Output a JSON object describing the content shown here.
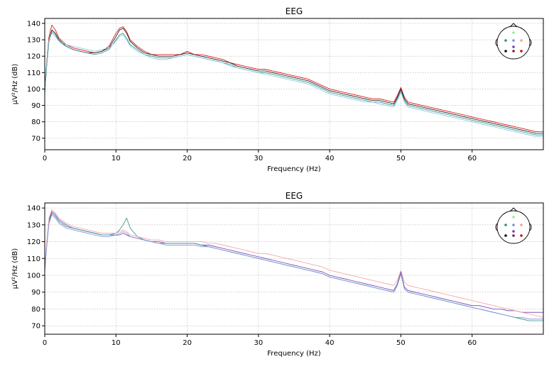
{
  "chart_data": [
    {
      "type": "line",
      "title": "EEG",
      "xlabel": "Frequency (Hz)",
      "ylabel": "µV²/Hz (dB)",
      "xlim": [
        0,
        70
      ],
      "ylim": [
        63,
        143
      ],
      "xticks": [
        0,
        10,
        20,
        30,
        40,
        50,
        60
      ],
      "yticks": [
        70,
        80,
        90,
        100,
        110,
        120,
        130,
        140
      ],
      "grid": true,
      "legend": "sensor-location-inset-top-right",
      "sensor_dots": [
        "#90ee90",
        "#2e8b8b",
        "#7b8fd6",
        "#f4a0a0",
        "#6a3fb5",
        "#111111",
        "#8b1a3a",
        "#e00000"
      ],
      "x": [
        0,
        0.3,
        0.6,
        1,
        1.5,
        2,
        3,
        4,
        5,
        6,
        7,
        8,
        9,
        10,
        10.5,
        11,
        11.5,
        12,
        13,
        14,
        15,
        16,
        17,
        18,
        19,
        20,
        21,
        22,
        23,
        24,
        25,
        26,
        27,
        28,
        29,
        30,
        31,
        32,
        33,
        34,
        35,
        36,
        37,
        38,
        39,
        40,
        41,
        42,
        43,
        44,
        45,
        46,
        47,
        48,
        49,
        49.5,
        50,
        50.5,
        51,
        52,
        53,
        54,
        55,
        56,
        57,
        58,
        59,
        60,
        61,
        62,
        63,
        64,
        65,
        66,
        67,
        68,
        69,
        70
      ],
      "series": [
        {
          "color": "#e00000",
          "values": [
            102,
            118,
            132,
            139,
            136,
            131,
            127,
            125,
            124,
            123,
            122,
            123,
            126,
            134,
            137,
            138,
            135,
            130,
            126,
            123,
            121,
            121,
            121,
            121,
            121,
            123,
            121,
            121,
            120,
            119,
            118,
            116,
            115,
            114,
            113,
            112,
            112,
            111,
            110,
            109,
            108,
            107,
            106,
            104,
            102,
            100,
            99,
            98,
            97,
            96,
            95,
            94,
            94,
            93,
            92,
            96,
            101,
            95,
            92,
            91,
            90,
            89,
            88,
            87,
            86,
            85,
            84,
            83,
            82,
            81,
            80,
            79,
            78,
            77,
            76,
            75,
            74,
            74
          ]
        },
        {
          "color": "#111111",
          "values": [
            98,
            116,
            130,
            136,
            134,
            130,
            126,
            124,
            123,
            122,
            122,
            123,
            125,
            132,
            136,
            137,
            134,
            129,
            125,
            122,
            121,
            120,
            120,
            120,
            121,
            122,
            121,
            120,
            119,
            118,
            117,
            116,
            114,
            113,
            112,
            111,
            111,
            110,
            109,
            108,
            107,
            106,
            105,
            103,
            101,
            99,
            98,
            97,
            96,
            95,
            94,
            93,
            93,
            92,
            91,
            95,
            100,
            94,
            91,
            90,
            89,
            88,
            87,
            86,
            85,
            84,
            83,
            82,
            81,
            80,
            79,
            78,
            77,
            76,
            75,
            74,
            73,
            73
          ]
        },
        {
          "color": "#2e8b8b",
          "values": [
            97,
            115,
            129,
            135,
            133,
            129,
            126,
            124,
            123,
            122,
            121,
            122,
            124,
            130,
            133,
            134,
            131,
            127,
            124,
            121,
            120,
            119,
            119,
            119,
            120,
            121,
            120,
            119,
            118,
            117,
            116,
            115,
            113,
            112,
            111,
            110,
            110,
            109,
            108,
            107,
            106,
            105,
            104,
            102,
            100,
            98,
            97,
            96,
            95,
            94,
            93,
            92,
            92,
            91,
            90,
            94,
            99,
            93,
            90,
            89,
            88,
            87,
            86,
            85,
            84,
            83,
            82,
            81,
            80,
            79,
            78,
            77,
            76,
            75,
            74,
            73,
            72,
            72
          ]
        },
        {
          "color": "#7fc8e0",
          "values": [
            99,
            117,
            130,
            134,
            132,
            129,
            127,
            126,
            125,
            124,
            123,
            124,
            125,
            129,
            132,
            133,
            130,
            126,
            123,
            121,
            119,
            118,
            118,
            119,
            120,
            121,
            120,
            119,
            118,
            117,
            116,
            114,
            113,
            112,
            111,
            110,
            109,
            108,
            107,
            106,
            105,
            104,
            103,
            101,
            99,
            97,
            96,
            95,
            94,
            93,
            92,
            92,
            91,
            90,
            89,
            93,
            98,
            92,
            89,
            88,
            87,
            86,
            85,
            84,
            83,
            82,
            81,
            80,
            79,
            78,
            77,
            76,
            75,
            74,
            73,
            72,
            71,
            71
          ]
        }
      ]
    },
    {
      "type": "line",
      "title": "EEG",
      "xlabel": "Frequency (Hz)",
      "ylabel": "µV²/Hz (dB)",
      "xlim": [
        0,
        70
      ],
      "ylim": [
        65,
        143
      ],
      "xticks": [
        0,
        10,
        20,
        30,
        40,
        50,
        60
      ],
      "yticks": [
        70,
        80,
        90,
        100,
        110,
        120,
        130,
        140
      ],
      "grid": true,
      "legend": "sensor-location-inset-top-right",
      "sensor_dots": [
        "#90ee90",
        "#2e8b8b",
        "#7b8fd6",
        "#f4a0a0",
        "#6a3fb5",
        "#111111",
        "#8b1a3a",
        "#e00000"
      ],
      "x": [
        0,
        0.3,
        0.6,
        1,
        1.5,
        2,
        3,
        4,
        5,
        6,
        7,
        8,
        9,
        10,
        10.5,
        11,
        11.5,
        12,
        13,
        14,
        15,
        16,
        17,
        18,
        19,
        20,
        21,
        22,
        23,
        24,
        25,
        26,
        27,
        28,
        29,
        30,
        31,
        32,
        33,
        34,
        35,
        36,
        37,
        38,
        39,
        40,
        41,
        42,
        43,
        44,
        45,
        46,
        47,
        48,
        49,
        49.5,
        50,
        50.5,
        51,
        52,
        53,
        54,
        55,
        56,
        57,
        58,
        59,
        60,
        61,
        62,
        63,
        64,
        65,
        66,
        67,
        68,
        69,
        70
      ],
      "series": [
        {
          "color": "#6a3fb5",
          "values": [
            104,
            120,
            133,
            138,
            136,
            133,
            130,
            128,
            127,
            126,
            125,
            124,
            124,
            124,
            124,
            125,
            124,
            123,
            122,
            121,
            120,
            120,
            119,
            119,
            119,
            119,
            119,
            118,
            118,
            117,
            116,
            115,
            114,
            113,
            112,
            111,
            110,
            109,
            108,
            107,
            106,
            105,
            104,
            103,
            102,
            100,
            99,
            98,
            97,
            96,
            95,
            94,
            93,
            92,
            91,
            95,
            102,
            93,
            91,
            90,
            89,
            88,
            87,
            86,
            85,
            84,
            83,
            82,
            82,
            81,
            80,
            80,
            79,
            79,
            78,
            78,
            78,
            78
          ]
        },
        {
          "color": "#2e8b8b",
          "values": [
            103,
            119,
            132,
            137,
            135,
            132,
            129,
            128,
            127,
            126,
            125,
            124,
            124,
            125,
            127,
            130,
            134,
            128,
            123,
            121,
            120,
            119,
            119,
            119,
            119,
            119,
            119,
            118,
            117,
            116,
            115,
            114,
            113,
            112,
            111,
            110,
            109,
            108,
            107,
            106,
            105,
            104,
            103,
            102,
            101,
            99,
            98,
            97,
            96,
            95,
            94,
            93,
            92,
            91,
            90,
            94,
            101,
            92,
            90,
            89,
            88,
            87,
            86,
            85,
            84,
            83,
            82,
            81,
            80,
            79,
            78,
            77,
            76,
            75,
            74,
            73,
            73,
            73
          ]
        },
        {
          "color": "#f4a0a0",
          "values": [
            105,
            121,
            134,
            139,
            137,
            134,
            131,
            129,
            128,
            127,
            126,
            125,
            125,
            125,
            126,
            127,
            126,
            124,
            123,
            122,
            121,
            121,
            120,
            120,
            120,
            120,
            120,
            120,
            119,
            119,
            118,
            117,
            116,
            115,
            114,
            113,
            113,
            112,
            111,
            110,
            109,
            108,
            107,
            106,
            105,
            103,
            102,
            101,
            100,
            99,
            98,
            97,
            96,
            95,
            94,
            97,
            103,
            96,
            94,
            93,
            92,
            91,
            90,
            89,
            88,
            87,
            86,
            85,
            84,
            83,
            82,
            81,
            80,
            79,
            78,
            77,
            76,
            75
          ]
        },
        {
          "color": "#7b8fd6",
          "values": [
            102,
            118,
            131,
            136,
            134,
            131,
            128,
            127,
            126,
            125,
            124,
            123,
            123,
            124,
            125,
            126,
            125,
            123,
            122,
            121,
            120,
            119,
            118,
            118,
            118,
            118,
            118,
            117,
            117,
            116,
            115,
            114,
            113,
            112,
            111,
            110,
            109,
            108,
            107,
            106,
            105,
            104,
            103,
            102,
            101,
            99,
            98,
            97,
            96,
            95,
            94,
            93,
            92,
            91,
            90,
            94,
            101,
            92,
            90,
            89,
            88,
            87,
            86,
            85,
            84,
            83,
            82,
            81,
            80,
            79,
            78,
            77,
            76,
            75,
            75,
            74,
            74,
            74
          ]
        }
      ]
    }
  ]
}
